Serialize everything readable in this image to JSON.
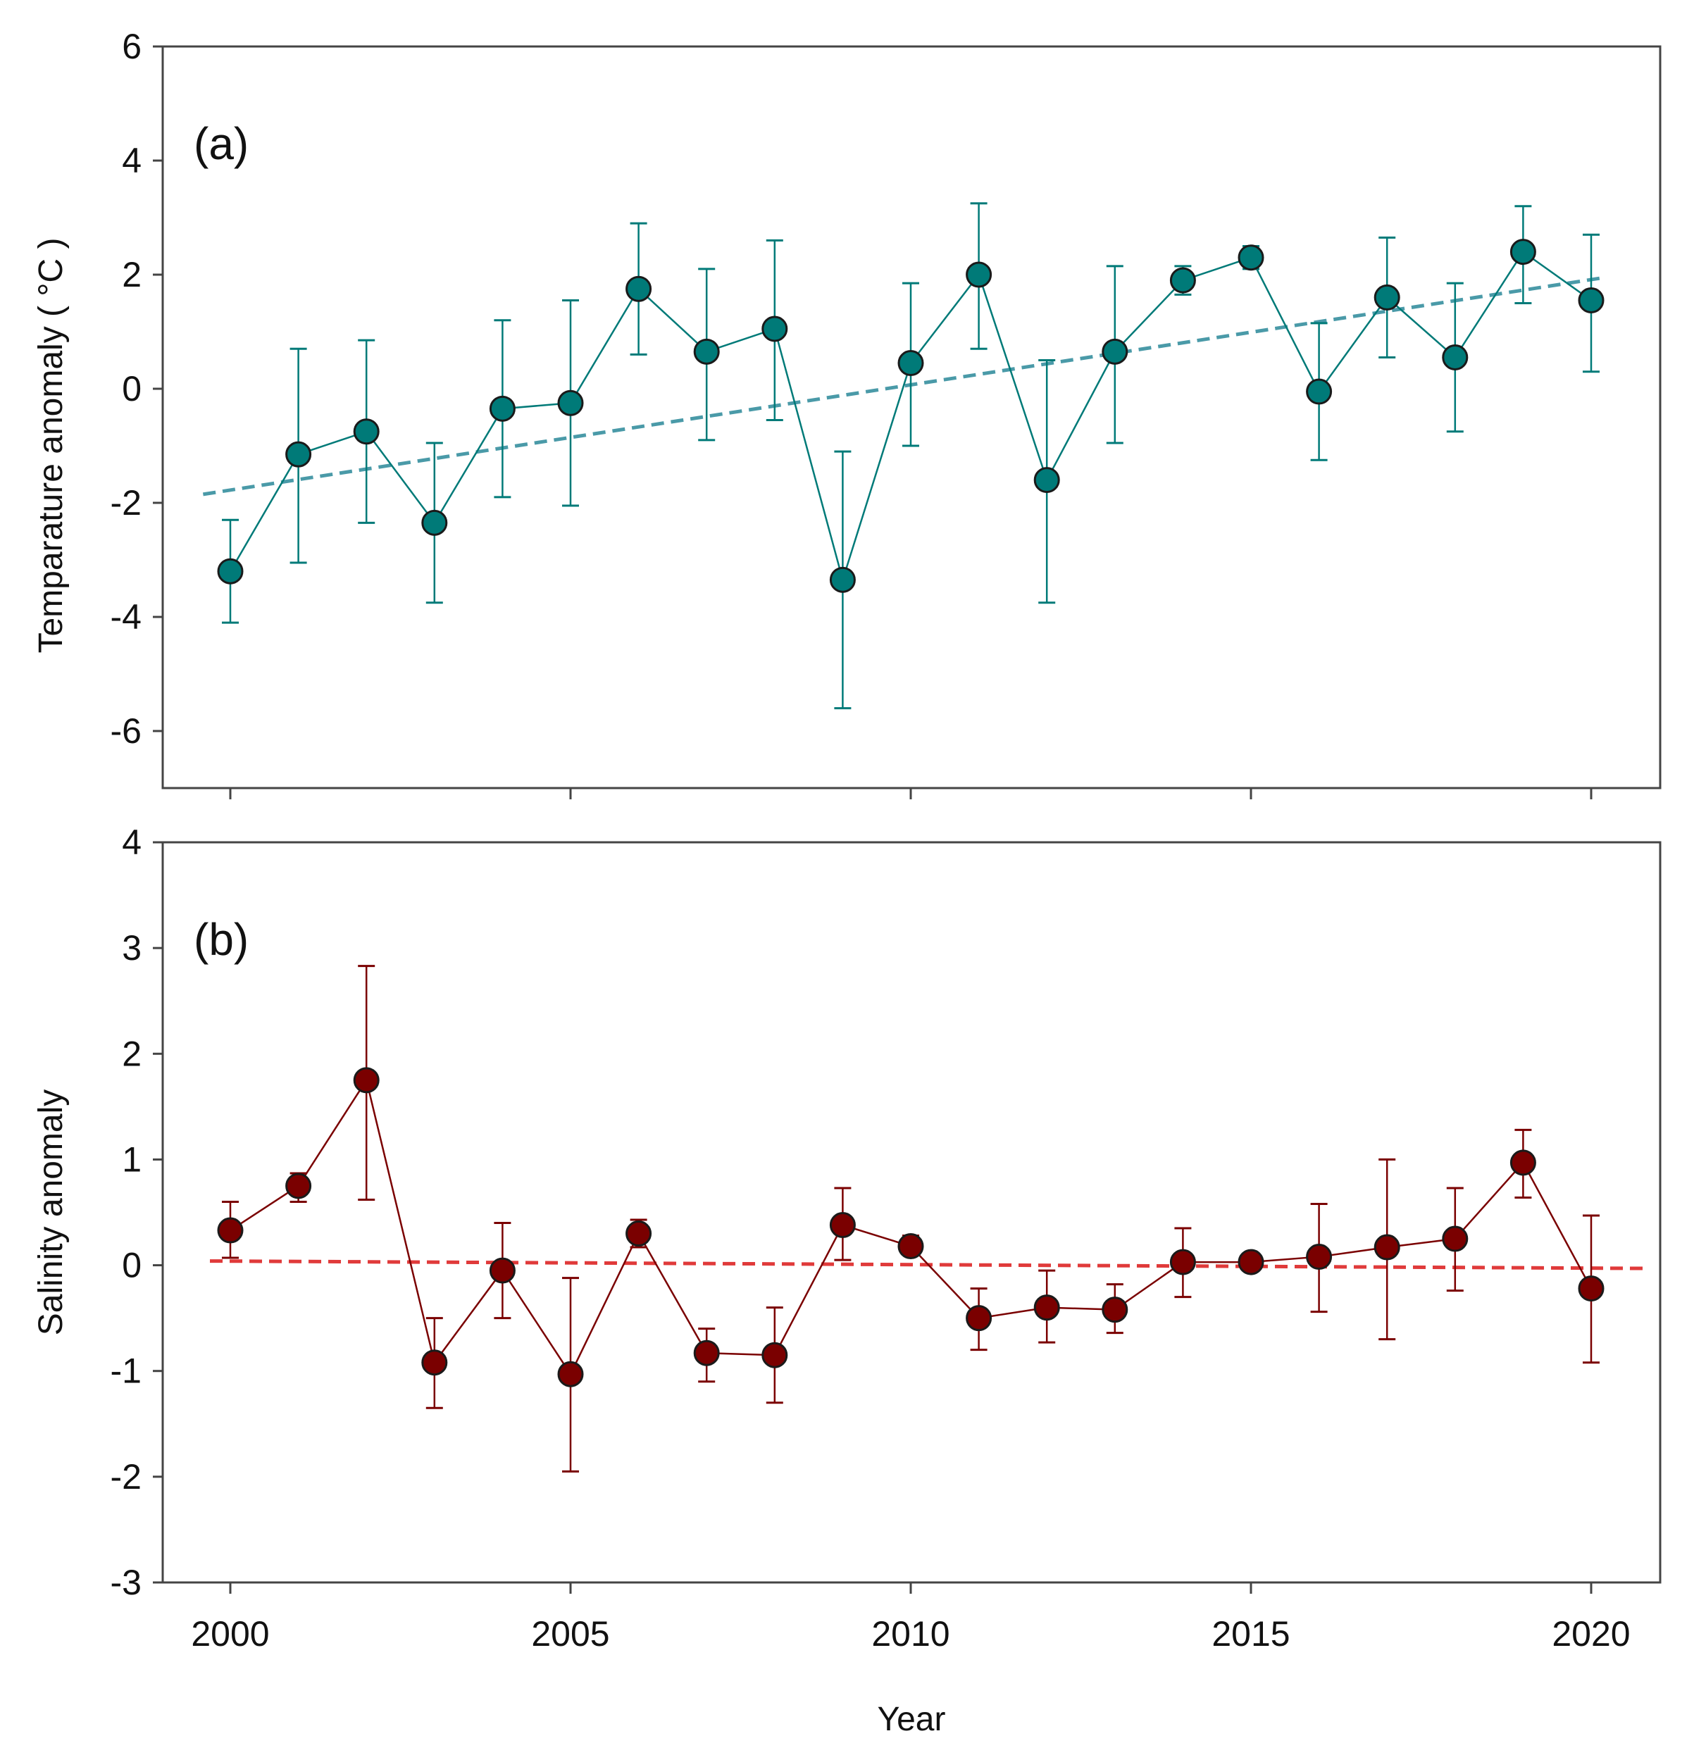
{
  "chart_data": [
    {
      "type": "line",
      "panel_label": "(a)",
      "ylabel": "Temparature anomaly ( °C )",
      "xlabel": "",
      "ylim": [
        -7,
        6
      ],
      "yticks": [
        -6,
        -4,
        -2,
        0,
        2,
        4,
        6
      ],
      "xlim": [
        1999,
        2021
      ],
      "xticks": [
        2000,
        2005,
        2010,
        2015,
        2020
      ],
      "show_x_tick_labels": false,
      "color": "#007a78",
      "trend_color": "#4a9aa8",
      "x": [
        2000,
        2001,
        2002,
        2003,
        2004,
        2005,
        2006,
        2007,
        2008,
        2009,
        2010,
        2011,
        2012,
        2013,
        2014,
        2015,
        2016,
        2017,
        2018,
        2019,
        2020
      ],
      "y": [
        -3.2,
        -1.15,
        -0.75,
        -2.35,
        -0.35,
        -0.25,
        1.75,
        0.65,
        1.05,
        -3.35,
        0.45,
        2.0,
        -1.6,
        0.65,
        1.9,
        2.3,
        -0.05,
        1.6,
        0.55,
        2.4,
        1.55
      ],
      "err_low": [
        -4.1,
        -3.05,
        -2.35,
        -3.75,
        -1.9,
        -2.05,
        0.6,
        -0.9,
        -0.55,
        -5.6,
        -1.0,
        0.7,
        -3.75,
        -0.95,
        1.65,
        2.1,
        -1.25,
        0.55,
        -0.75,
        1.5,
        0.3
      ],
      "err_high": [
        -2.3,
        0.7,
        0.85,
        -0.95,
        1.2,
        1.55,
        2.9,
        2.1,
        2.6,
        -1.1,
        1.85,
        3.25,
        0.5,
        2.15,
        2.15,
        2.5,
        1.15,
        2.65,
        1.85,
        3.2,
        2.7
      ],
      "trend": {
        "x": [
          1999.6,
          2020.2
        ],
        "y": [
          -1.85,
          1.95
        ]
      }
    },
    {
      "type": "line",
      "panel_label": "(b)",
      "ylabel": "Salinity anomaly",
      "xlabel": "Year",
      "ylim": [
        -3,
        4
      ],
      "yticks": [
        -3,
        -2,
        -1,
        0,
        1,
        2,
        3,
        4
      ],
      "xlim": [
        1999,
        2021
      ],
      "xticks": [
        2000,
        2005,
        2010,
        2015,
        2020
      ],
      "show_x_tick_labels": true,
      "color": "#7a0000",
      "trend_color": "#e03a3a",
      "x": [
        2000,
        2001,
        2002,
        2003,
        2004,
        2005,
        2006,
        2007,
        2008,
        2009,
        2010,
        2011,
        2012,
        2013,
        2014,
        2015,
        2016,
        2017,
        2018,
        2019,
        2020
      ],
      "y": [
        0.33,
        0.75,
        1.75,
        -0.92,
        -0.05,
        -1.03,
        0.3,
        -0.83,
        -0.85,
        0.38,
        0.18,
        -0.5,
        -0.4,
        -0.42,
        0.03,
        0.03,
        0.08,
        0.17,
        0.25,
        0.97,
        -0.22
      ],
      "err_low": [
        0.07,
        0.6,
        0.62,
        -1.35,
        -0.5,
        -1.95,
        0.17,
        -1.1,
        -1.3,
        0.05,
        0.1,
        -0.8,
        -0.73,
        -0.64,
        -0.3,
        -0.03,
        -0.44,
        -0.7,
        -0.24,
        0.64,
        -0.92
      ],
      "err_high": [
        0.6,
        0.87,
        2.83,
        -0.5,
        0.4,
        -0.12,
        0.43,
        -0.6,
        -0.4,
        0.73,
        0.28,
        -0.22,
        -0.05,
        -0.18,
        0.35,
        0.08,
        0.58,
        1.0,
        0.73,
        1.28,
        0.47
      ],
      "trend": {
        "x": [
          1999.7,
          2020.8
        ],
        "y": [
          0.04,
          -0.03
        ]
      }
    }
  ]
}
